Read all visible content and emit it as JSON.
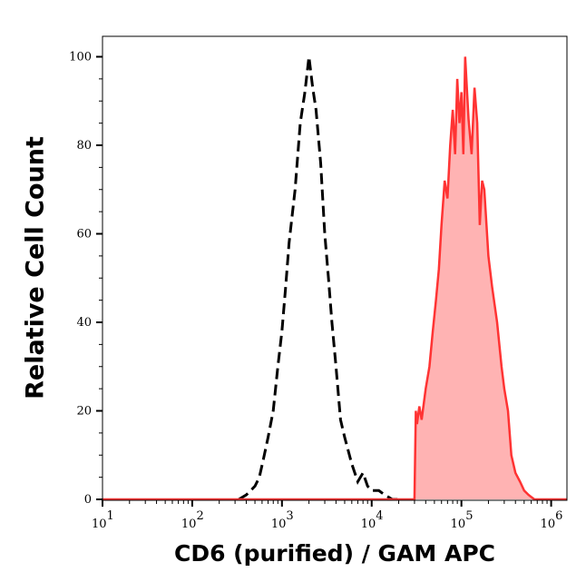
{
  "chart_data": {
    "type": "area",
    "title": "",
    "xlabel": "CD6 (purified) / GAM APC",
    "ylabel": "Relative Cell Count",
    "x_scale": "log",
    "xlim": [
      10,
      1500000
    ],
    "ylim": [
      0,
      105
    ],
    "x_ticks": [
      {
        "value": 10,
        "base": "10",
        "exp": "1"
      },
      {
        "value": 100,
        "base": "10",
        "exp": "2"
      },
      {
        "value": 1000,
        "base": "10",
        "exp": "3"
      },
      {
        "value": 10000,
        "base": "10",
        "exp": "4"
      },
      {
        "value": 100000,
        "base": "10",
        "exp": "5"
      },
      {
        "value": 1000000,
        "base": "10",
        "exp": "6"
      }
    ],
    "y_ticks": [
      "0",
      "20",
      "40",
      "60",
      "80",
      "100"
    ],
    "grid": false,
    "series": [
      {
        "style": "black dashed line, unfilled",
        "color": "#000000",
        "x": [
          330,
          400,
          500,
          560,
          620,
          700,
          800,
          900,
          1000,
          1100,
          1200,
          1400,
          1600,
          1800,
          2000,
          2200,
          2400,
          2700,
          3000,
          3300,
          3600,
          4000,
          4500,
          5000,
          6000,
          7000,
          8000,
          9000,
          10000,
          12000,
          14000,
          17000,
          20000
        ],
        "y": [
          0,
          1,
          3,
          5,
          9,
          14,
          20,
          30,
          38,
          48,
          58,
          70,
          85,
          92,
          100,
          93,
          88,
          76,
          60,
          50,
          40,
          30,
          18,
          14,
          8,
          4,
          6,
          3,
          2,
          2,
          1,
          0,
          0
        ]
      },
      {
        "style": "red line, filled light red",
        "color": "#ff3333",
        "fill": "#ffb3b3",
        "x": [
          10,
          30000,
          31000,
          32000,
          34000,
          36000,
          40000,
          44000,
          48000,
          52000,
          56000,
          60000,
          65000,
          70000,
          75000,
          80000,
          85000,
          90000,
          95000,
          100000,
          105000,
          110000,
          120000,
          130000,
          140000,
          150000,
          160000,
          170000,
          180000,
          200000,
          220000,
          250000,
          280000,
          300000,
          330000,
          360000,
          400000,
          450000,
          500000,
          560000,
          650000,
          800000,
          1500000
        ],
        "y": [
          0,
          0,
          20,
          17,
          21,
          18,
          25,
          30,
          38,
          45,
          52,
          62,
          72,
          68,
          80,
          88,
          78,
          95,
          85,
          92,
          78,
          100,
          86,
          78,
          93,
          85,
          62,
          72,
          70,
          55,
          48,
          40,
          30,
          25,
          20,
          10,
          6,
          4,
          2,
          1,
          0,
          0,
          0
        ]
      }
    ]
  }
}
